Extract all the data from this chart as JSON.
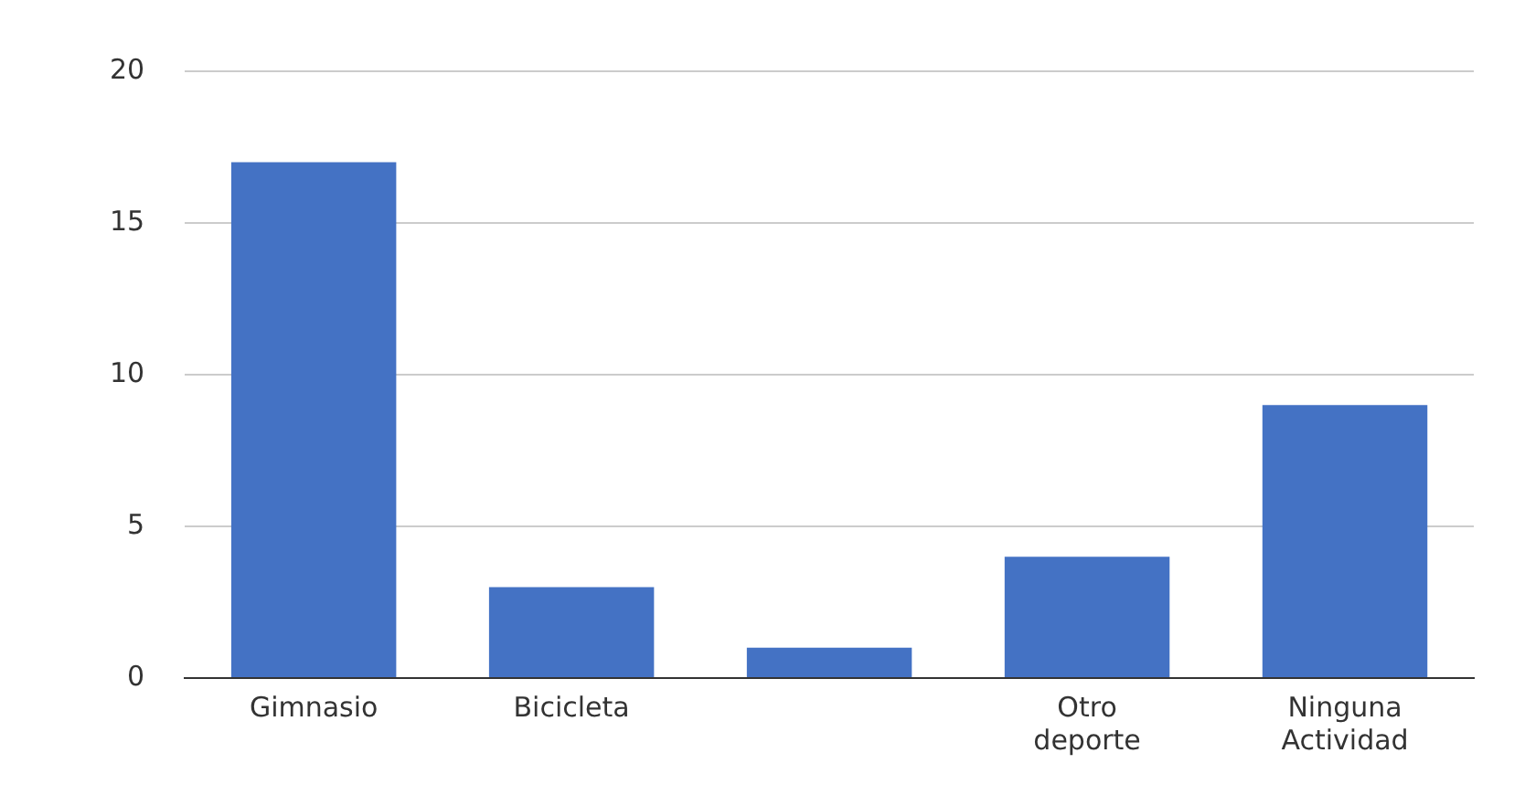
{
  "chart_data": {
    "type": "bar",
    "categories": [
      "Gimnasio",
      "Bicicleta",
      null,
      "Otro deporte",
      "Ninguna Actividad"
    ],
    "values": [
      17,
      3,
      1,
      4,
      9
    ],
    "color": "#4472c4",
    "ylim": [
      0,
      20
    ],
    "yticks": [
      0,
      5,
      10,
      15,
      20
    ],
    "grid": "y",
    "legend": false
  }
}
